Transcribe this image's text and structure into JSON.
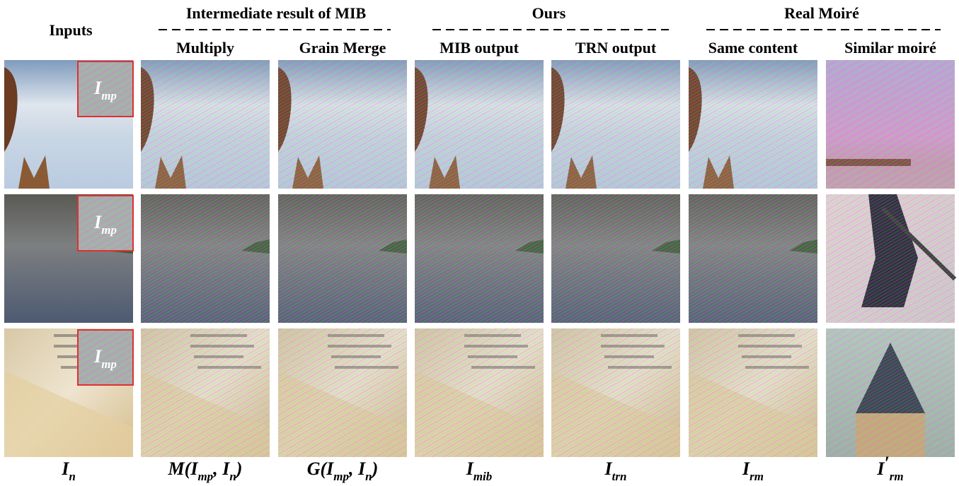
{
  "header": {
    "inputs": "Inputs",
    "groups": [
      {
        "title": "Intermediate result of MIB",
        "columns": [
          "Multiply",
          "Grain Merge"
        ]
      },
      {
        "title": "Ours",
        "columns": [
          "MIB output",
          "TRN output"
        ]
      },
      {
        "title": "Real Moiré",
        "columns": [
          "Same content",
          "Similar moiré"
        ]
      }
    ]
  },
  "inset": [
    {
      "t": "I"
    },
    {
      "s": "mp"
    }
  ],
  "labels": [
    [
      {
        "t": "I"
      },
      {
        "s": "n"
      }
    ],
    [
      {
        "t": "M(I"
      },
      {
        "s": "mp"
      },
      {
        "t": ", I"
      },
      {
        "s": "n"
      },
      {
        "t": ")"
      }
    ],
    [
      {
        "t": "G(I"
      },
      {
        "s": "mp"
      },
      {
        "t": ", I"
      },
      {
        "s": "n"
      },
      {
        "t": ")"
      }
    ],
    [
      {
        "t": "I"
      },
      {
        "s": "mib"
      }
    ],
    [
      {
        "t": "I"
      },
      {
        "s": "trn"
      }
    ],
    [
      {
        "t": "I"
      },
      {
        "s": "rm"
      }
    ],
    [
      {
        "t": "I"
      },
      {
        "p": "′"
      },
      {
        "s": "rm"
      }
    ]
  ]
}
